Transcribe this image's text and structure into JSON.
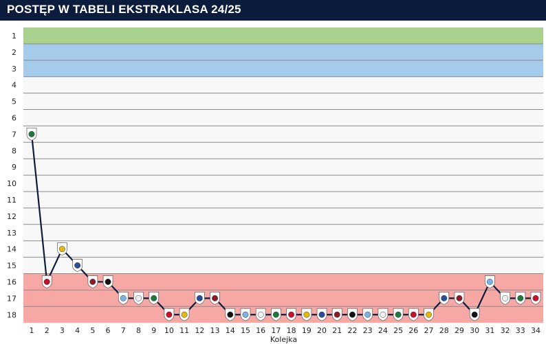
{
  "header": {
    "title": "POSTĘP W TABELI EKSTRAKLASA 24/25"
  },
  "chart_data": {
    "type": "line",
    "title": "POSTĘP W TABELI EKSTRAKLASA 24/25",
    "xlabel": "Kolejka",
    "ylabel": "",
    "x": [
      1,
      2,
      3,
      4,
      5,
      6,
      7,
      8,
      9,
      10,
      11,
      12,
      13,
      14,
      15,
      16,
      17,
      18,
      19,
      20,
      21,
      22,
      23,
      24,
      25,
      26,
      27,
      28,
      29,
      30,
      31,
      32,
      33,
      34
    ],
    "series": [
      {
        "values": [
          7,
          16,
          14,
          15,
          16,
          16,
          17,
          17,
          17,
          18,
          18,
          17,
          17,
          18,
          18,
          18,
          18,
          18,
          18,
          18,
          18,
          18,
          18,
          18,
          18,
          18,
          18,
          17,
          17,
          18,
          16,
          17,
          17,
          17
        ]
      }
    ],
    "xlim": [
      1,
      34
    ],
    "ylim": [
      1,
      18
    ],
    "y_inverted": true,
    "grid": true,
    "legend": "none",
    "zones": [
      {
        "from": 1,
        "to": 1,
        "color": "#a9d18e"
      },
      {
        "from": 2,
        "to": 3,
        "color": "#a5cbea"
      },
      {
        "from": 4,
        "to": 15,
        "color": "#f8f8f8"
      },
      {
        "from": 16,
        "to": 18,
        "color": "#f7a8a4"
      }
    ],
    "colors": {
      "line": "#0c1c3c",
      "header": "#0c1c3c",
      "gridline": "#8a8a8a"
    }
  }
}
